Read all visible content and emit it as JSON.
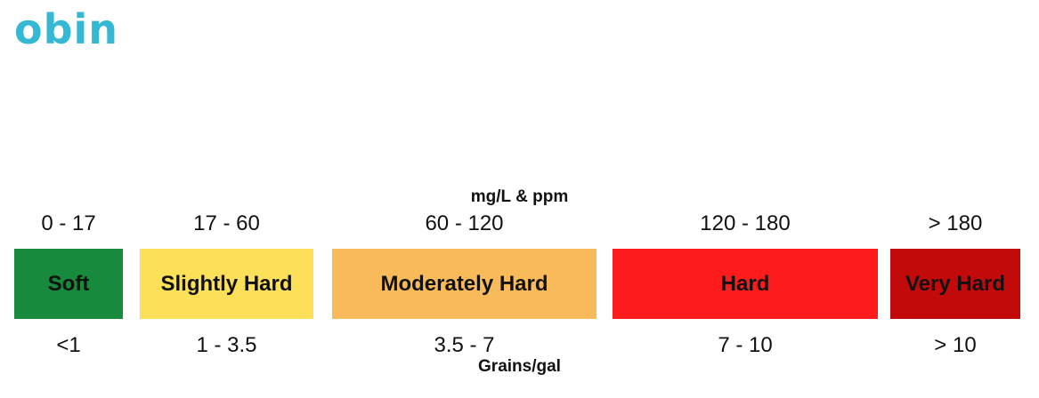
{
  "logo": "obin",
  "top_unit": "mg/L & ppm",
  "bottom_unit": "Grains/gal",
  "categories": [
    {
      "label": "Soft",
      "ppm": "0 - 17",
      "grains": "<1",
      "color": "#178a3d"
    },
    {
      "label": "Slightly Hard",
      "ppm": "17 - 60",
      "grains": "1 - 3.5",
      "color": "#fde05a"
    },
    {
      "label": "Moderately Hard",
      "ppm": "60 - 120",
      "grains": "3.5 - 7",
      "color": "#f9bb5a"
    },
    {
      "label": "Hard",
      "ppm": "120 - 180",
      "grains": "7 - 10",
      "color": "#fd1b1b"
    },
    {
      "label": "Very Hard",
      "ppm": "> 180",
      "grains": "> 10",
      "color": "#c20a0a"
    }
  ]
}
